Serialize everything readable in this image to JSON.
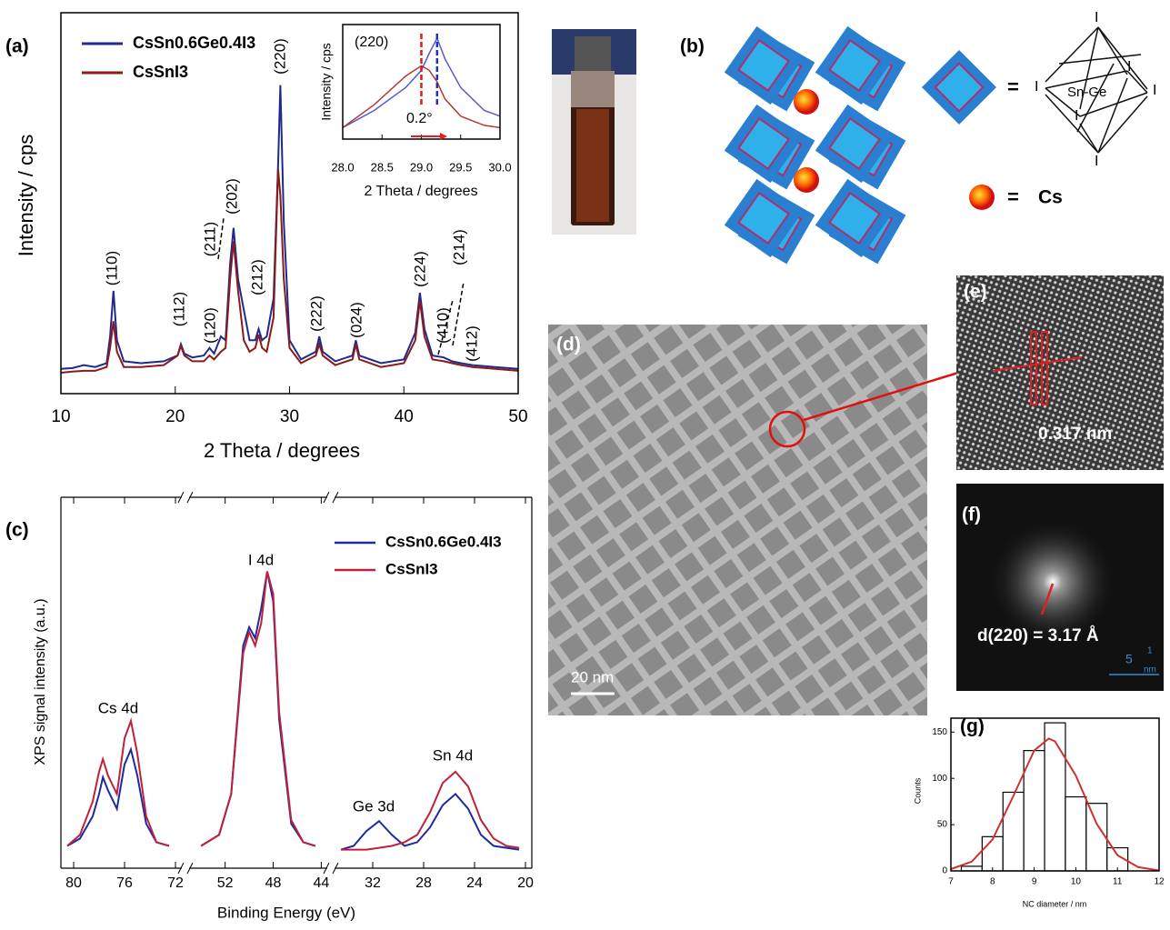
{
  "panels": {
    "a": "(a)",
    "b": "(b)",
    "c": "(c)",
    "d": "(d)",
    "e": "(e)",
    "f": "(f)",
    "g": "(g)"
  },
  "schematic": {
    "equals": "=",
    "center": "Sn-Ge",
    "vertex": "I",
    "cs": "Cs"
  },
  "tem": {
    "scale_bar": "20 nm",
    "lattice": "0.317 nm",
    "fft": "d(220) = 3.17 Å",
    "fft_scale": "5",
    "fft_scale_num": "1",
    "fft_scale_den": "nm"
  },
  "chart_data": [
    {
      "type": "line",
      "x_label": "2 Theta / degrees",
      "y_label": "Intensity / cps",
      "x": [
        10,
        11,
        12,
        13,
        14,
        14.3,
        14.6,
        14.9,
        15.5,
        17,
        19,
        20.2,
        20.5,
        20.8,
        21.5,
        22.5,
        23,
        23.4,
        24,
        24.4,
        24.8,
        25.1,
        25.5,
        26,
        26.5,
        27,
        27.3,
        27.6,
        28,
        28.6,
        29,
        29.2,
        29.5,
        30,
        31,
        32.3,
        32.6,
        32.9,
        34,
        35.5,
        35.8,
        36.1,
        38,
        40,
        41,
        41.4,
        41.8,
        42.5,
        43.5,
        44.2,
        45,
        46,
        48,
        50
      ],
      "series": [
        {
          "name": "CsSn0.6Ge0.4I3",
          "color": "#1f2a8f",
          "values": [
            6.5,
            6.7,
            7.5,
            7,
            8,
            15,
            27,
            14,
            8.5,
            8,
            8.5,
            10,
            13,
            10.5,
            9.5,
            10,
            12,
            10.5,
            15,
            14,
            34,
            43.5,
            30,
            22,
            14,
            14,
            17,
            14,
            15,
            25,
            60,
            81,
            45,
            14,
            9,
            11,
            15,
            11,
            8.5,
            10,
            14,
            10,
            8,
            9,
            16,
            26.5,
            17,
            10,
            9.5,
            8.5,
            8,
            7.5,
            7,
            6.5
          ]
        },
        {
          "name": "CsSnI3",
          "color": "#8b1a1a",
          "values": [
            5.5,
            5.8,
            6,
            6,
            7,
            12,
            19,
            11,
            7,
            7,
            7.5,
            10,
            12.5,
            10,
            8.5,
            8.5,
            10,
            9,
            11,
            12,
            30,
            40,
            27,
            14,
            11,
            12,
            15.5,
            12,
            11,
            20,
            59,
            52,
            30,
            12,
            8,
            10,
            13,
            10,
            7.5,
            9,
            13,
            9,
            7,
            8,
            14,
            24.5,
            15,
            9,
            8.5,
            8,
            7.5,
            7,
            6.5,
            6
          ]
        }
      ],
      "xlim": [
        10,
        50
      ],
      "xticks": [
        10,
        20,
        30,
        40,
        50
      ],
      "ylim": [
        0,
        100
      ],
      "peak_labels": [
        "(110)",
        "(112)",
        "(120)",
        "(211)",
        "(202)",
        "(212)",
        "(220)",
        "(222)",
        "(024)",
        "(224)",
        "(410)",
        "(214)",
        "(412)"
      ]
    },
    {
      "type": "line",
      "x_label": "2 Theta / degrees",
      "y_label": "Intensity / cps",
      "label": "(220)",
      "shift": "0.2°",
      "x": [
        28,
        28.4,
        28.8,
        29.0,
        29.1,
        29.2,
        29.3,
        29.5,
        29.8,
        30
      ],
      "series": [
        {
          "name": "CsSn0.6Ge0.4I3",
          "color": "#5a5ad0",
          "values": [
            10,
            25,
            45,
            60,
            75,
            88,
            70,
            45,
            25,
            20
          ]
        },
        {
          "name": "CsSnI3",
          "color": "#b03a3a",
          "values": [
            10,
            30,
            55,
            64,
            60,
            50,
            35,
            20,
            12,
            10
          ]
        }
      ],
      "peak_markers": [
        {
          "x": 29.0,
          "color": "#d02020"
        },
        {
          "x": 29.2,
          "color": "#2030c0"
        }
      ],
      "xlim": [
        28,
        30
      ],
      "xticks": [
        {
          "value": 28,
          "label": "28.0"
        },
        {
          "value": 28.5,
          "label": "28.5"
        },
        {
          "value": 29,
          "label": "29.0"
        },
        {
          "value": 29.5,
          "label": "29.5"
        },
        {
          "value": 30,
          "label": "30.0"
        }
      ],
      "ylim": [
        0,
        100
      ]
    },
    {
      "type": "line",
      "x_label": "Binding Energy (eV)",
      "y_label": "XPS signal intensity (a.u.)",
      "annotations": [
        "Cs 4d",
        "I 4d",
        "Ge 3d",
        "Sn 4d"
      ],
      "x": [
        80.5,
        79.5,
        78.5,
        78,
        77.7,
        77.3,
        76.6,
        76,
        75.5,
        75,
        74.3,
        73.5,
        72.5,
        54,
        52.5,
        51.5,
        50.5,
        50,
        49.5,
        49,
        48.5,
        48,
        47.5,
        46.5,
        45.5,
        44.5,
        34.5,
        33.5,
        32.5,
        31.5,
        30.5,
        29.5,
        28.5,
        27.5,
        26.5,
        25.5,
        24.5,
        23.5,
        22.5,
        21.5,
        20.5
      ],
      "series": [
        {
          "name": "CsSn0.6Ge0.4I3",
          "color": "#1f2a9f",
          "values": [
            6,
            8,
            14,
            20,
            24.5,
            21,
            16,
            28,
            32,
            25,
            12,
            7,
            6,
            6,
            9,
            20,
            60,
            65,
            62,
            70,
            80,
            72,
            40,
            12,
            7,
            6,
            5,
            6,
            10,
            12.7,
            9,
            6,
            7,
            11,
            17,
            20,
            16,
            9,
            6,
            5.5,
            5
          ]
        },
        {
          "name": "CsSnI3",
          "color": "#c0203a",
          "values": [
            6,
            9,
            18,
            26,
            29.4,
            25,
            20,
            35,
            39.7,
            31,
            14,
            7,
            6,
            6,
            9,
            20,
            58,
            63.7,
            60,
            66,
            80,
            74,
            42,
            13,
            7,
            6,
            5,
            5,
            5,
            5.5,
            6,
            7,
            9,
            15,
            23,
            26,
            22,
            13,
            8,
            6,
            5.5
          ]
        }
      ],
      "segments": [
        [
          81,
          71.5
        ],
        [
          55,
          43.5
        ],
        [
          35,
          19.5
        ]
      ],
      "xticks": [
        80,
        76,
        72,
        52,
        48,
        44,
        32,
        28,
        24,
        20
      ],
      "ylim": [
        0,
        100
      ]
    },
    {
      "type": "histogram",
      "x_label": "NC diameter / nm",
      "y_label": "Counts",
      "bins": [
        7.25,
        7.75,
        8.25,
        8.75,
        9.25,
        9.75,
        10.25,
        10.75,
        11.25
      ],
      "values": [
        5,
        37,
        85,
        130,
        160,
        80,
        73,
        25
      ],
      "color": "#000000",
      "fit": {
        "color": "#d03030",
        "x": [
          7,
          7.5,
          8,
          8.5,
          9,
          9.35,
          9.5,
          10,
          10.5,
          11,
          11.5,
          12
        ],
        "values": [
          2,
          10,
          34,
          81,
          130,
          143,
          140,
          103,
          51,
          17,
          4,
          0.5
        ]
      },
      "xlim": [
        7,
        12
      ],
      "xticks": [
        7,
        8,
        9,
        10,
        11,
        12
      ],
      "ylim": [
        0,
        165
      ],
      "yticks": [
        0,
        50,
        100,
        150
      ]
    }
  ]
}
